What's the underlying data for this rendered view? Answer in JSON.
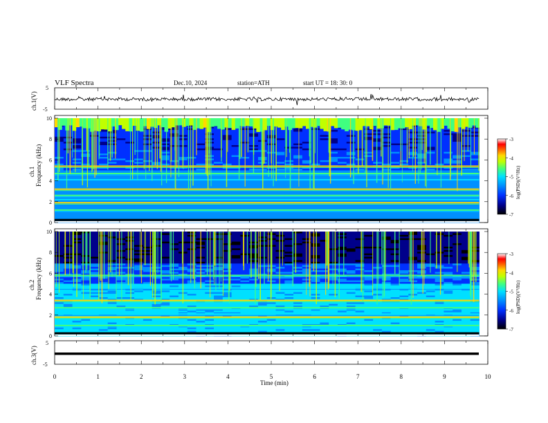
{
  "header": {
    "title": "VLF  Spectra",
    "date": "Dec.10, 2024",
    "station": "station=ATH",
    "start": "start  UT  =   18: 30: 0"
  },
  "colors": {
    "trace": "#000000",
    "axis": "#000000",
    "colormap": [
      "#000000",
      "#00008b",
      "#0030ff",
      "#0090ff",
      "#00e0ff",
      "#40ff80",
      "#c0ff00",
      "#ffd800",
      "#ff6000",
      "#ff0000",
      "#ffffff"
    ]
  },
  "chart_data": [
    {
      "type": "line",
      "panel": "ch1-waveform",
      "ylabel": "ch.1(V)",
      "ylim": [
        -5,
        5
      ],
      "yticks": [
        "5",
        "-5"
      ],
      "xlim": [
        0,
        10
      ],
      "description_level": 0,
      "series": [
        {
          "values_level": 0
        }
      ]
    },
    {
      "type": "heatmap",
      "panel": "ch1-spectrogram",
      "ylabel_channel": "ch.1",
      "ylabel": "Frequency  (kHz)",
      "ylim": [
        0,
        10
      ],
      "yticks": [
        "0",
        "2",
        "4",
        "6",
        "8",
        "10"
      ],
      "xlim": [
        0,
        9.8
      ],
      "colorbar": {
        "label": "log(PSD)(V²/Hz)",
        "range": [
          -7,
          -3
        ],
        "ticks": [
          "-3",
          "-4",
          "-5",
          "-6",
          "-7"
        ]
      },
      "bands_khz": [
        1.2,
        1.9,
        2.2,
        2.6,
        3.2,
        4.1,
        4.7,
        5.4
      ]
    },
    {
      "type": "heatmap",
      "panel": "ch2-spectrogram",
      "ylabel_channel": "ch.2",
      "ylabel": "Frequency  (kHz)",
      "ylim": [
        0,
        10
      ],
      "yticks": [
        "0",
        "2",
        "4",
        "6",
        "8",
        "10"
      ],
      "xlim": [
        0,
        9.8
      ],
      "colorbar": {
        "label": "log(PSD)(V²/Hz)",
        "range": [
          -7,
          -3
        ],
        "ticks": [
          "-3",
          "-4",
          "-5",
          "-6",
          "-7"
        ]
      },
      "bands_khz": [
        1.0,
        1.8,
        2.1,
        2.7,
        3.4,
        4.6,
        5.8
      ]
    },
    {
      "type": "line",
      "panel": "ch3-waveform",
      "ylabel": "ch.3(V)",
      "ylim": [
        -5,
        5
      ],
      "yticks": [
        "5",
        "-5"
      ],
      "xlim": [
        0,
        10
      ],
      "series": [
        {
          "constant_value": -1.5
        }
      ]
    }
  ],
  "xaxis": {
    "label": "Time  (min)",
    "ticks": [
      "0",
      "1",
      "2",
      "3",
      "4",
      "5",
      "6",
      "7",
      "8",
      "9",
      "10"
    ]
  }
}
